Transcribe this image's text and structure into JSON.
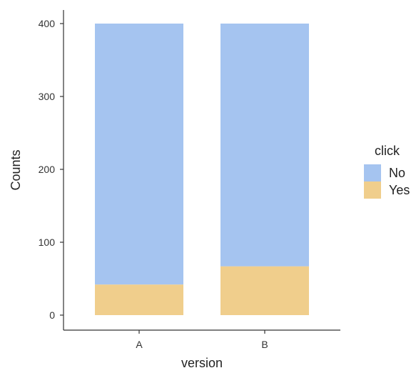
{
  "chart_data": {
    "type": "bar",
    "stacked": true,
    "categories": [
      "A",
      "B"
    ],
    "series": [
      {
        "name": "Yes",
        "values": [
          42,
          67
        ],
        "color": "#F0CE8C"
      },
      {
        "name": "No",
        "values": [
          358,
          333
        ],
        "color": "#A5C4F0"
      }
    ],
    "xlabel": "version",
    "ylabel": "Counts",
    "ylim": [
      0,
      400
    ],
    "yticks": [
      0,
      100,
      200,
      300,
      400
    ],
    "grid": false,
    "legend": {
      "title": "click",
      "position": "right",
      "entries": [
        {
          "label": "No",
          "color": "#A5C4F0"
        },
        {
          "label": "Yes",
          "color": "#F0CE8C"
        }
      ]
    }
  }
}
